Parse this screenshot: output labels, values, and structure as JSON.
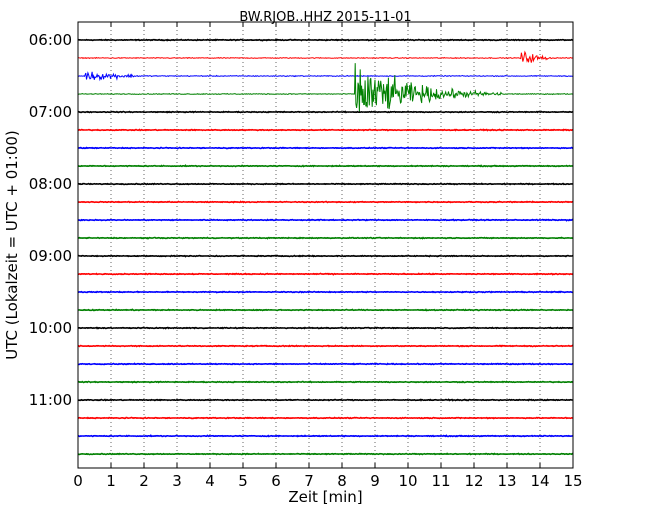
{
  "chart_data": {
    "type": "line",
    "title": "BW.RJOB..HHZ 2015-11-01",
    "xlabel": "Zeit  [min]",
    "ylabel": "UTC (Lokalzeit = UTC + 01:00)",
    "xlim": [
      0,
      15
    ],
    "x_ticks": [
      "0",
      "1",
      "2",
      "3",
      "4",
      "5",
      "6",
      "7",
      "8",
      "9",
      "10",
      "11",
      "12",
      "13",
      "14",
      "15"
    ],
    "y_ticks": [
      "06:00",
      "07:00",
      "08:00",
      "09:00",
      "10:00",
      "11:00"
    ],
    "grid": true,
    "colors": [
      "#000000",
      "#ff0000",
      "#0000ff",
      "#008000"
    ],
    "trace_start_times": [
      "06:00",
      "06:15",
      "06:30",
      "06:45",
      "07:00",
      "07:15",
      "07:30",
      "07:45",
      "08:00",
      "08:15",
      "08:30",
      "08:45",
      "09:00",
      "09:15",
      "09:30",
      "09:45",
      "10:00",
      "10:15",
      "10:30",
      "10:45",
      "11:00",
      "11:15",
      "11:30",
      "11:45"
    ],
    "events": [
      {
        "trace": "06:30",
        "start_min": 0.2,
        "end_min": 4.0,
        "peak_amplitude": 0.55
      },
      {
        "trace": "06:15",
        "start_min": 13.4,
        "end_min": 15.0,
        "peak_amplitude": 0.85
      },
      {
        "trace": "06:45",
        "start_min": 8.4,
        "end_min": 13.0,
        "peak_amplitude": 3.5
      }
    ]
  }
}
